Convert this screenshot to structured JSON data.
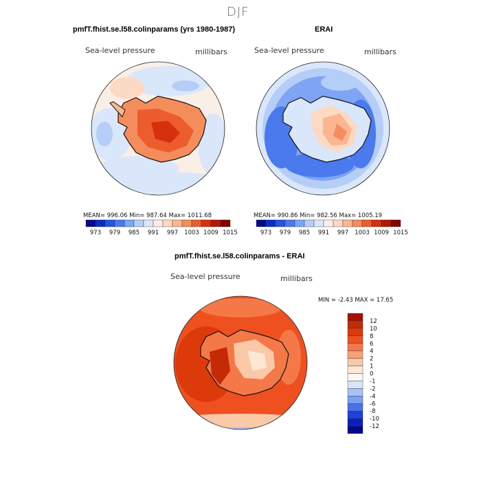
{
  "figure": {
    "title": "DJF"
  },
  "chart_data": [
    {
      "type": "heatmap",
      "title": "pmfT.fhist.se.l58.colinparams (yrs 1980-1987)",
      "subtitle": "Sea-level pressure",
      "units": "millibars",
      "stats": {
        "mean": 996.06,
        "min": 987.64,
        "max": 1011.68,
        "text": "MEAN= 996.06   Min= 987.64   Max= 1011.68"
      },
      "colorbar": {
        "tick_labels": [
          "973",
          "979",
          "985",
          "991",
          "997",
          "1003",
          "1009",
          "1015"
        ],
        "colors": [
          "#08088c",
          "#0c2ec4",
          "#2454e0",
          "#4a7aee",
          "#7ea4f4",
          "#b4cef8",
          "#dae6fa",
          "#f9efe6",
          "#fcd9c2",
          "#fab691",
          "#f48c5c",
          "#ec5c2c",
          "#d7300e",
          "#b51706",
          "#820600"
        ]
      }
    },
    {
      "type": "heatmap",
      "title": "ERAI",
      "subtitle": "Sea-level pressure",
      "units": "millibars",
      "stats": {
        "mean": 990.86,
        "min": 982.56,
        "max": 1005.19,
        "text": "MEAN= 990.86   Min= 982.56   Max= 1005.19"
      },
      "colorbar": {
        "tick_labels": [
          "973",
          "979",
          "985",
          "991",
          "997",
          "1003",
          "1009",
          "1015"
        ],
        "colors": [
          "#08088c",
          "#0c2ec4",
          "#2454e0",
          "#4a7aee",
          "#7ea4f4",
          "#b4cef8",
          "#dae6fa",
          "#f9efe6",
          "#fcd9c2",
          "#fab691",
          "#f48c5c",
          "#ec5c2c",
          "#d7300e",
          "#b51706",
          "#820600"
        ]
      }
    },
    {
      "type": "heatmap",
      "title": "pmfT.fhist.se.l58.colinparams - ERAI",
      "subtitle": "Sea-level pressure",
      "units": "millibars",
      "stats": {
        "min": -2.43,
        "max": 17.65,
        "text": "MIN =   -2.43 MAX =   17.65"
      },
      "colorbar": {
        "tick_labels": [
          "12",
          "10",
          "8",
          "6",
          "4",
          "2",
          "1",
          "0",
          "-1",
          "-2",
          "-4",
          "-6",
          "-8",
          "-10",
          "-12"
        ],
        "colors": [
          "#a61004",
          "#c52a06",
          "#dd3a0c",
          "#ee5020",
          "#f47848",
          "#f8a078",
          "#fbc8a8",
          "#fde6d6",
          "#fdf7f2",
          "#d8e6fa",
          "#a8c2f6",
          "#7ea0f0",
          "#4a72e8",
          "#1e42d8",
          "#0a1fbe",
          "#05088e"
        ]
      }
    }
  ]
}
